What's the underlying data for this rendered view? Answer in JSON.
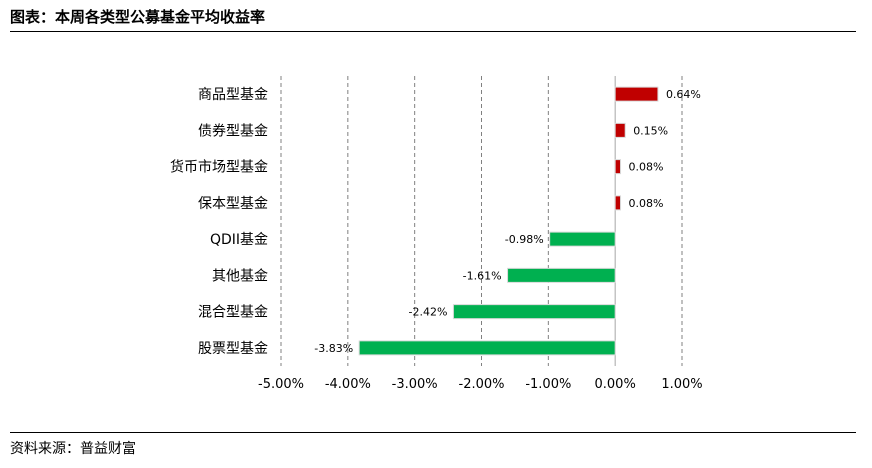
{
  "header": {
    "title": "图表：本周各类型公募基金平均收益率"
  },
  "footer": {
    "source": "资料来源：普益财富"
  },
  "chart_data": {
    "type": "bar",
    "orientation": "horizontal",
    "categories": [
      "商品型基金",
      "债券型基金",
      "货币市场型基金",
      "保本型基金",
      "QDII基金",
      "其他基金",
      "混合型基金",
      "股票型基金"
    ],
    "values": [
      0.64,
      0.15,
      0.08,
      0.08,
      -0.98,
      -1.61,
      -2.42,
      -3.83
    ],
    "data_labels": [
      "0.64%",
      "0.15%",
      "0.08%",
      "0.08%",
      "-0.98%",
      "-1.61%",
      "-2.42%",
      "-3.83%"
    ],
    "xlim": [
      -5,
      1
    ],
    "xticks": [
      -5,
      -4,
      -3,
      -2,
      -1,
      0,
      1
    ],
    "xtick_labels": [
      "-5.00%",
      "-4.00%",
      "-3.00%",
      "-2.00%",
      "-1.00%",
      "0.00%",
      "1.00%"
    ],
    "grid": "vertical-dashed",
    "colors": {
      "positive": "#c00000",
      "negative": "#00b050",
      "grid": "#808080"
    }
  }
}
